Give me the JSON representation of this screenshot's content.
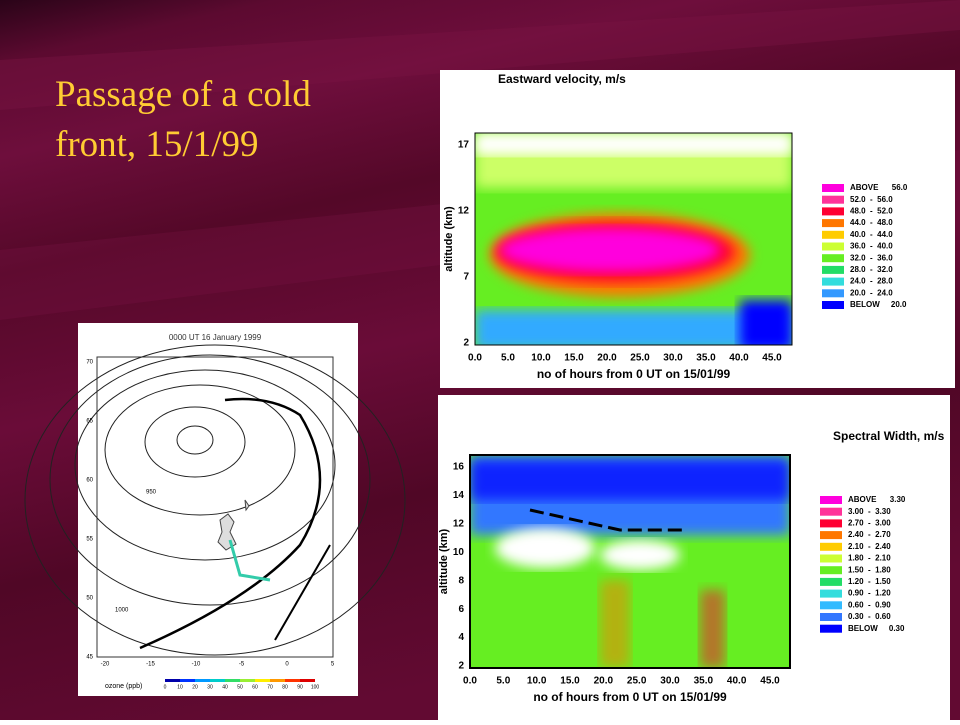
{
  "title": "Passage of a cold front, 15/1/99",
  "velocity_panel": {
    "title": "Eastward velocity, m/s",
    "y_label": "altitude (km)",
    "x_label": "no of hours from 0 UT on 15/01/99",
    "y_ticks": [
      "17",
      "12",
      "7",
      "2"
    ],
    "x_ticks": [
      "0.0",
      "5.0",
      "10.0",
      "15.0",
      "20.0",
      "25.0",
      "30.0",
      "35.0",
      "40.0",
      "45.0"
    ],
    "legend": [
      {
        "label": "ABOVE      56.0",
        "color": "#ff00dd"
      },
      {
        "label": "52.0  -  56.0",
        "color": "#ff3399"
      },
      {
        "label": "48.0  -  52.0",
        "color": "#ff0033"
      },
      {
        "label": "44.0  -  48.0",
        "color": "#ff7700"
      },
      {
        "label": "40.0  -  44.0",
        "color": "#ffcc00"
      },
      {
        "label": "36.0  -  40.0",
        "color": "#ccff33"
      },
      {
        "label": "32.0  -  36.0",
        "color": "#66ee22"
      },
      {
        "label": "28.0  -  32.0",
        "color": "#22dd66"
      },
      {
        "label": "24.0  -  28.0",
        "color": "#33dddd"
      },
      {
        "label": "20.0  -  24.0",
        "color": "#3399ff"
      },
      {
        "label": "BELOW     20.0",
        "color": "#0000ff"
      }
    ]
  },
  "width_panel": {
    "title": "Spectral Width, m/s",
    "y_label": "altitude (km)",
    "x_label": "no of hours from 0 UT on 15/01/99",
    "y_ticks": [
      "16",
      "14",
      "12",
      "10",
      "8",
      "6",
      "4",
      "2"
    ],
    "x_ticks": [
      "0.0",
      "5.0",
      "10.0",
      "15.0",
      "20.0",
      "25.0",
      "30.0",
      "35.0",
      "40.0",
      "45.0"
    ],
    "legend": [
      {
        "label": "ABOVE      3.30",
        "color": "#ff00dd"
      },
      {
        "label": "3.00  -  3.30",
        "color": "#ff3399"
      },
      {
        "label": "2.70  -  3.00",
        "color": "#ff0033"
      },
      {
        "label": "2.40  -  2.70",
        "color": "#ff7700"
      },
      {
        "label": "2.10  -  2.40",
        "color": "#ffcc00"
      },
      {
        "label": "1.80  -  2.10",
        "color": "#ccff33"
      },
      {
        "label": "1.50  -  1.80",
        "color": "#66ee22"
      },
      {
        "label": "1.20  -  1.50",
        "color": "#22dd66"
      },
      {
        "label": "0.90  -  1.20",
        "color": "#33dddd"
      },
      {
        "label": "0.60  -  0.90",
        "color": "#33bbff"
      },
      {
        "label": "0.30  -  0.60",
        "color": "#3377ff"
      },
      {
        "label": "BELOW     0.30",
        "color": "#0000ff"
      }
    ]
  },
  "map_panel": {
    "title": "0000 UT 16 January 1999",
    "y_ticks": [
      "70",
      "65",
      "60",
      "55",
      "50",
      "45"
    ],
    "x_ticks": [
      "-20",
      "-15",
      "-10",
      "-5",
      "0",
      "5"
    ],
    "contour_labels": [
      "950",
      "1000"
    ],
    "colorbar_label": "ozone (ppb)",
    "colorbar_ticks": [
      "0",
      "10",
      "20",
      "30",
      "40",
      "50",
      "60",
      "70",
      "80",
      "90",
      "100"
    ]
  }
}
